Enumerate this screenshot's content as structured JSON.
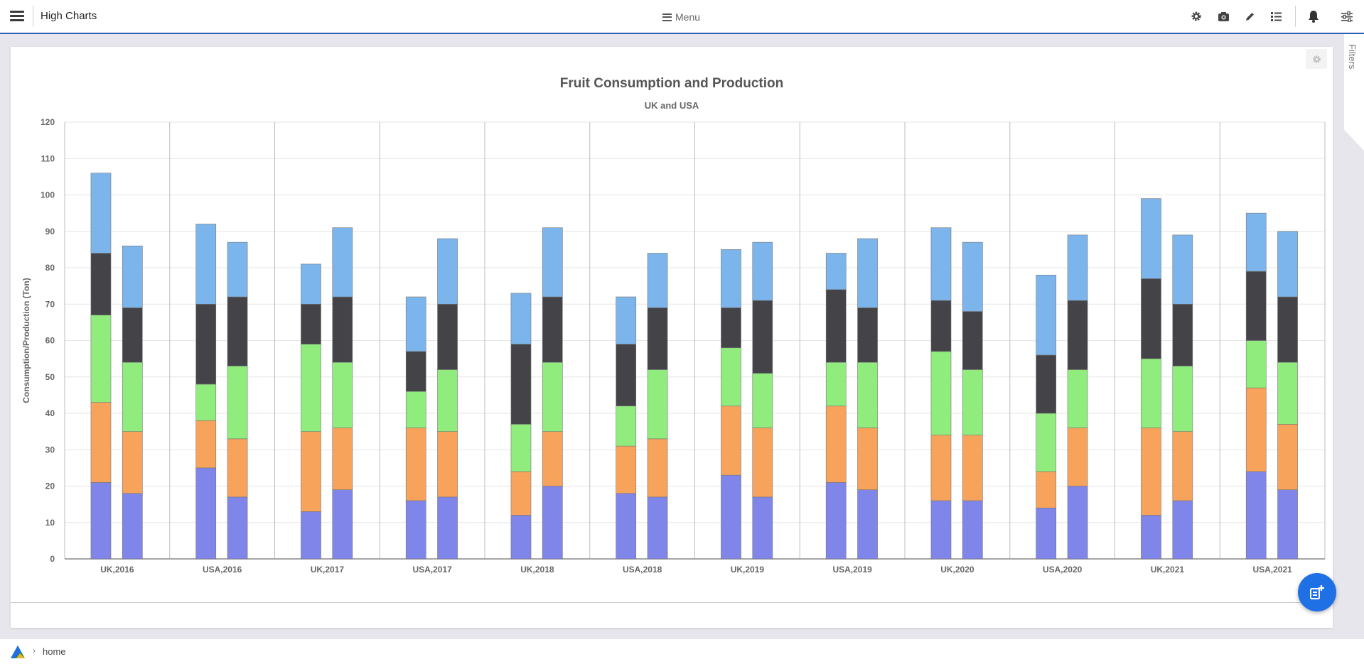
{
  "header": {
    "app_title": "High Charts",
    "menu_label": "Menu",
    "icons": [
      "gear-icon",
      "camera-icon",
      "pencil-icon",
      "list-icon",
      "bell-icon",
      "sliders-icon"
    ]
  },
  "filters": {
    "label": "Filters"
  },
  "breadcrumb": {
    "home": "home"
  },
  "colors": {
    "accent": "#2c5fb8",
    "fab": "#1f6fe5",
    "series": [
      "#8085e9",
      "#f7a35c",
      "#90ed7d",
      "#434348",
      "#7cb5ec"
    ]
  },
  "chart_data": {
    "type": "bar",
    "stacked": true,
    "title": "Fruit Consumption and Production",
    "subtitle": "UK and USA",
    "ylabel": "Consumption/Production (Ton)",
    "ylim": [
      0,
      120
    ],
    "yticks": [
      0,
      10,
      20,
      30,
      40,
      50,
      60,
      70,
      80,
      90,
      100,
      110,
      120
    ],
    "grid": true,
    "legend": "none",
    "categories": [
      "UK,2016",
      "USA,2016",
      "UK,2017",
      "USA,2017",
      "UK,2018",
      "USA,2018",
      "UK,2019",
      "USA,2019",
      "UK,2020",
      "USA,2020",
      "UK,2021",
      "USA,2021"
    ],
    "bars_per_category": 2,
    "bars": [
      [
        [
          21,
          22,
          24,
          17,
          22
        ],
        [
          18,
          17,
          19,
          15,
          17
        ]
      ],
      [
        [
          25,
          13,
          10,
          22,
          22
        ],
        [
          17,
          16,
          20,
          19,
          15
        ]
      ],
      [
        [
          13,
          22,
          24,
          11,
          11
        ],
        [
          19,
          17,
          18,
          18,
          19
        ]
      ],
      [
        [
          16,
          20,
          10,
          11,
          15
        ],
        [
          17,
          18,
          17,
          18,
          18
        ]
      ],
      [
        [
          12,
          12,
          13,
          22,
          14
        ],
        [
          20,
          15,
          19,
          18,
          19
        ]
      ],
      [
        [
          18,
          13,
          11,
          17,
          13
        ],
        [
          17,
          16,
          19,
          17,
          15
        ]
      ],
      [
        [
          23,
          19,
          16,
          11,
          16
        ],
        [
          17,
          19,
          15,
          20,
          16
        ]
      ],
      [
        [
          21,
          21,
          12,
          20,
          10
        ],
        [
          19,
          17,
          18,
          15,
          19
        ]
      ],
      [
        [
          16,
          18,
          23,
          14,
          20
        ],
        [
          16,
          18,
          18,
          16,
          19
        ]
      ],
      [
        [
          14,
          10,
          16,
          16,
          22
        ],
        [
          20,
          16,
          16,
          19,
          18
        ]
      ],
      [
        [
          12,
          24,
          19,
          22,
          22
        ],
        [
          16,
          19,
          18,
          17,
          19
        ]
      ],
      [
        [
          24,
          23,
          13,
          19,
          16
        ],
        [
          19,
          18,
          17,
          18,
          18
        ]
      ]
    ]
  }
}
